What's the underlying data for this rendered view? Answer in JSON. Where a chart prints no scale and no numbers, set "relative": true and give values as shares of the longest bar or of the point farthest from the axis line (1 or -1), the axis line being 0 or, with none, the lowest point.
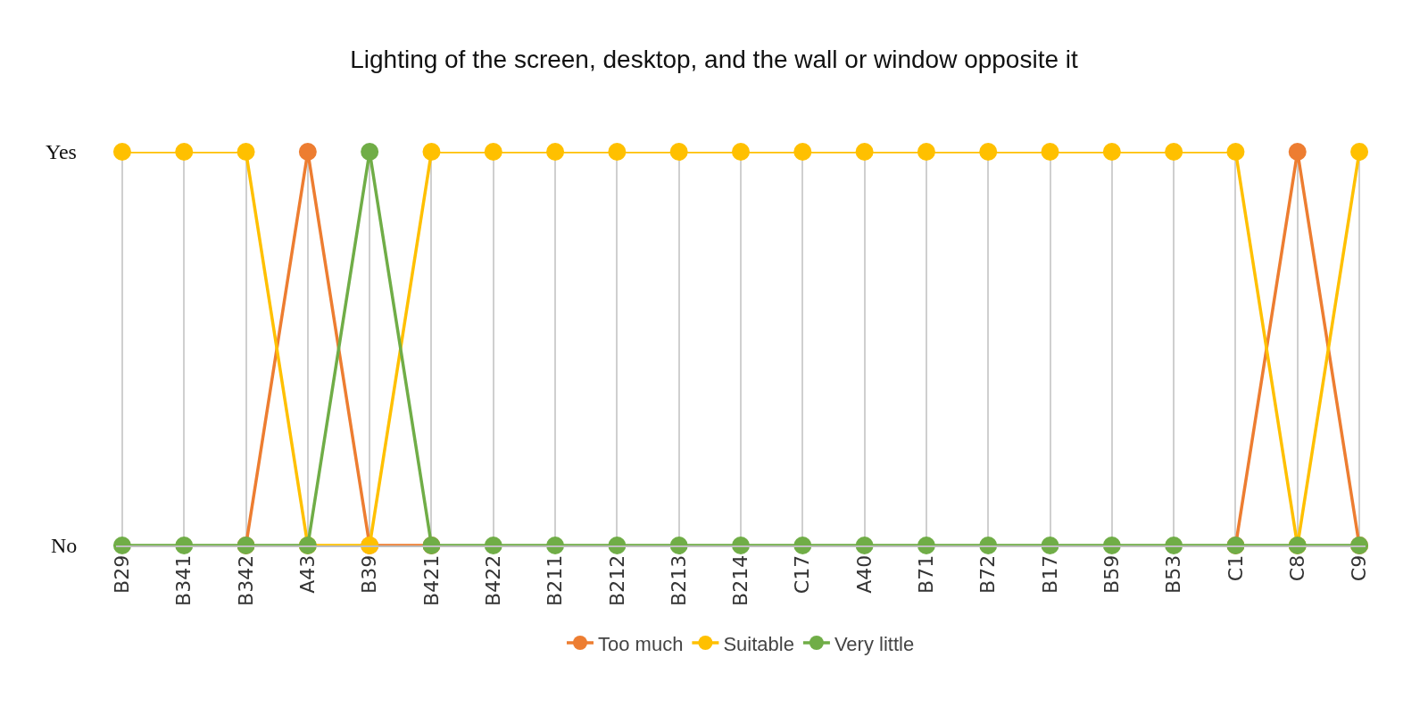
{
  "chart_data": {
    "type": "line",
    "title": "Lighting of the screen, desktop, and the wall or window opposite it",
    "categories": [
      "B29",
      "B341",
      "B342",
      "A43",
      "B39",
      "B421",
      "B422",
      "B211",
      "B212",
      "B213",
      "B214",
      "C17",
      "A40",
      "B71",
      "B72",
      "B17",
      "B59",
      "B53",
      "C1",
      "C8",
      "C9"
    ],
    "series": [
      {
        "name": "Too much",
        "color": "#ed7d31",
        "values": [
          null,
          null,
          0,
          1,
          0,
          0,
          null,
          null,
          null,
          null,
          null,
          null,
          null,
          null,
          null,
          null,
          null,
          null,
          0,
          1,
          0
        ]
      },
      {
        "name": "Suitable",
        "color": "#ffc000",
        "values": [
          1,
          1,
          1,
          0,
          0,
          1,
          1,
          1,
          1,
          1,
          1,
          1,
          1,
          1,
          1,
          1,
          1,
          1,
          1,
          0,
          1
        ]
      },
      {
        "name": "Very little",
        "color": "#70ad47",
        "values": [
          0,
          0,
          0,
          0,
          1,
          0,
          0,
          0,
          0,
          0,
          0,
          0,
          0,
          0,
          0,
          0,
          0,
          0,
          0,
          0,
          0
        ]
      }
    ],
    "relative": true,
    "annotations": [
      "Yes",
      "No"
    ],
    "grid": true,
    "legend": "bottom",
    "marker": "circle",
    "line_style": "solid"
  }
}
